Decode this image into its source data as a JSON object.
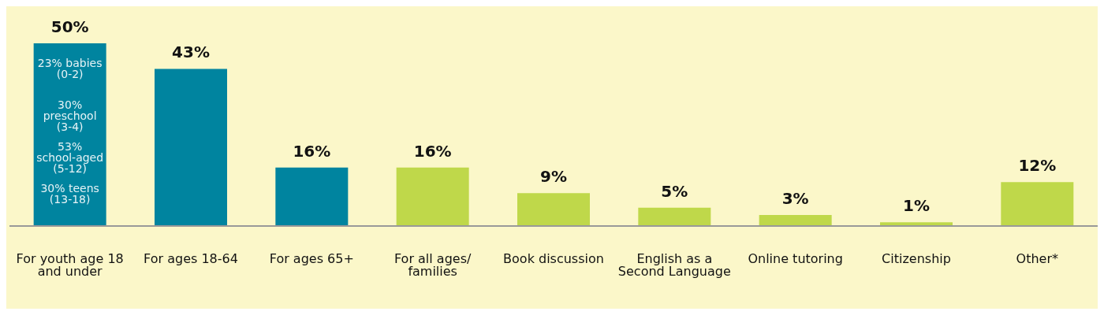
{
  "chart_data": {
    "type": "bar",
    "categories": [
      "For youth age 18 and under",
      "For ages 18-64",
      "For ages 65+",
      "For all ages/ families",
      "Book discussion",
      "English as a Second Language",
      "Online tutoring",
      "Citizenship",
      "Other*"
    ],
    "values": [
      50,
      43,
      16,
      16,
      9,
      5,
      3,
      1,
      12
    ],
    "colors": [
      "#00849f",
      "#00849f",
      "#00849f",
      "#bfd84a",
      "#bfd84a",
      "#bfd84a",
      "#bfd84a",
      "#bfd84a",
      "#bfd84a"
    ],
    "value_labels": [
      "50%",
      "43%",
      "16%",
      "16%",
      "9%",
      "5%",
      "3%",
      "1%",
      "12%"
    ],
    "annotations": [
      "23% babies (0-2)",
      "30% preschool (3-4)",
      "53% school-aged (5-12)",
      "30% teens (13-18)"
    ],
    "grid": false,
    "legend": false
  }
}
